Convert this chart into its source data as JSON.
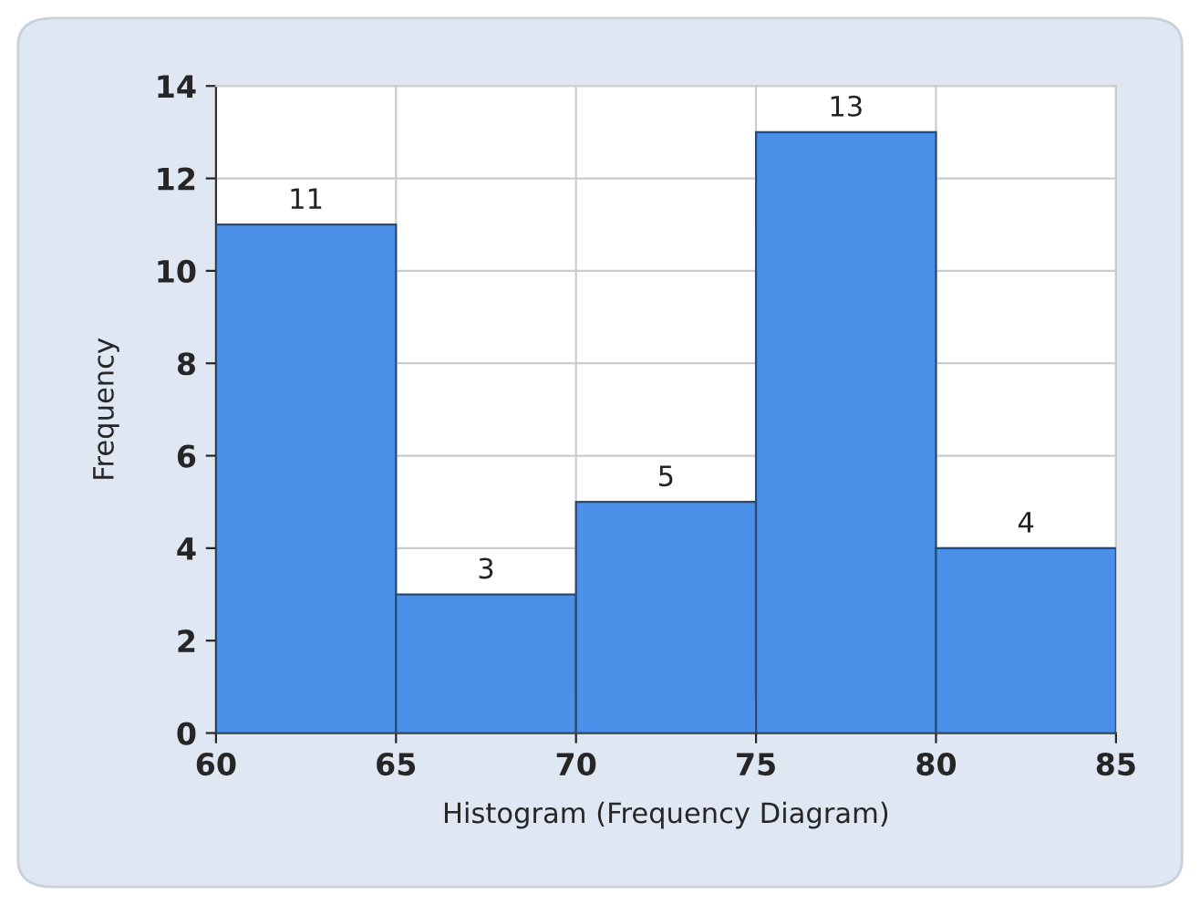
{
  "chart_data": {
    "type": "histogram",
    "xlabel": "Histogram (Frequency Diagram)",
    "ylabel": "Frequency",
    "bins": [
      60,
      65,
      70,
      75,
      80,
      85
    ],
    "values": [
      11,
      3,
      5,
      13,
      4
    ],
    "color": "#4a90e8",
    "xlim": [
      60,
      85
    ],
    "xticks": [
      60,
      65,
      70,
      75,
      80,
      85
    ],
    "ylim": [
      0,
      14
    ],
    "yticks": [
      0,
      2,
      4,
      6,
      8,
      10,
      12,
      14
    ],
    "grid": true,
    "data_labels": true
  }
}
